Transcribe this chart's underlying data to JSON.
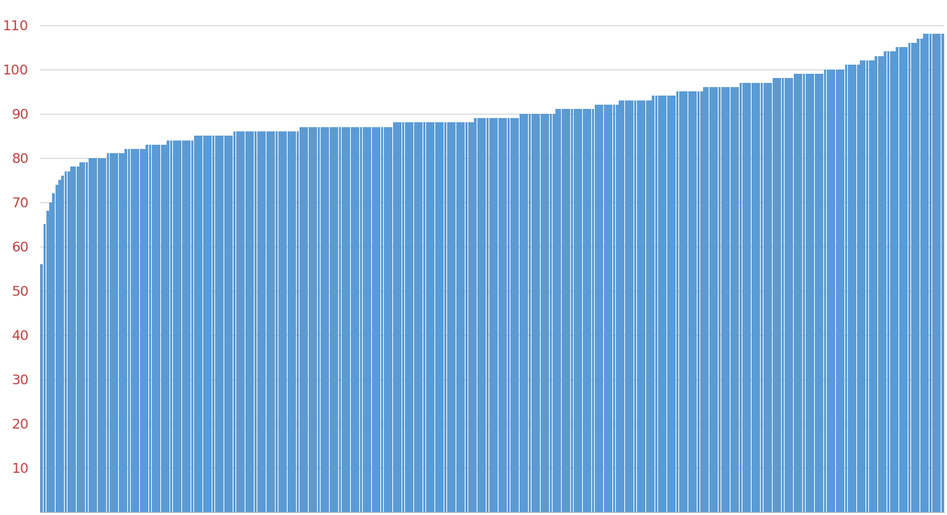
{
  "bar_color": "#5B9BD5",
  "background_color": "#ffffff",
  "grid_color": "#d0d0d0",
  "axis_label_color": "#BF4040",
  "ylim": [
    0,
    115
  ],
  "yticks": [
    0,
    10,
    20,
    30,
    40,
    50,
    60,
    70,
    80,
    90,
    100,
    110
  ],
  "n_bars": 300,
  "values": [
    56,
    65,
    68,
    70,
    72,
    74,
    75,
    76,
    77,
    77,
    78,
    78,
    78,
    79,
    79,
    79,
    80,
    80,
    80,
    80,
    80,
    80,
    81,
    81,
    81,
    81,
    81,
    81,
    82,
    82,
    82,
    82,
    82,
    82,
    82,
    83,
    83,
    83,
    83,
    83,
    83,
    83,
    84,
    84,
    84,
    84,
    84,
    84,
    84,
    84,
    84,
    85,
    85,
    85,
    85,
    85,
    85,
    85,
    85,
    85,
    85,
    85,
    85,
    85,
    86,
    86,
    86,
    86,
    86,
    86,
    86,
    86,
    86,
    86,
    86,
    86,
    86,
    86,
    86,
    86,
    86,
    86,
    86,
    86,
    86,
    86,
    87,
    87,
    87,
    87,
    87,
    87,
    87,
    87,
    87,
    87,
    87,
    87,
    87,
    87,
    87,
    87,
    87,
    87,
    87,
    87,
    87,
    87,
    87,
    87,
    87,
    87,
    87,
    87,
    87,
    87,
    87,
    88,
    88,
    88,
    88,
    88,
    88,
    88,
    88,
    88,
    88,
    88,
    88,
    88,
    88,
    88,
    88,
    88,
    88,
    88,
    88,
    88,
    88,
    88,
    88,
    88,
    88,
    88,
    89,
    89,
    89,
    89,
    89,
    89,
    89,
    89,
    89,
    89,
    89,
    89,
    89,
    89,
    89,
    90,
    90,
    90,
    90,
    90,
    90,
    90,
    90,
    90,
    90,
    90,
    90,
    91,
    91,
    91,
    91,
    91,
    91,
    91,
    91,
    91,
    91,
    91,
    91,
    91,
    92,
    92,
    92,
    92,
    92,
    92,
    92,
    92,
    93,
    93,
    93,
    93,
    93,
    93,
    93,
    93,
    93,
    93,
    93,
    94,
    94,
    94,
    94,
    94,
    94,
    94,
    94,
    95,
    95,
    95,
    95,
    95,
    95,
    95,
    95,
    95,
    96,
    96,
    96,
    96,
    96,
    96,
    96,
    96,
    96,
    96,
    96,
    96,
    97,
    97,
    97,
    97,
    97,
    97,
    97,
    97,
    97,
    97,
    97,
    98,
    98,
    98,
    98,
    98,
    98,
    98,
    99,
    99,
    99,
    99,
    99,
    99,
    99,
    99,
    99,
    99,
    100,
    100,
    100,
    100,
    100,
    100,
    100,
    101,
    101,
    101,
    101,
    101,
    102,
    102,
    102,
    102,
    102,
    103,
    103,
    103,
    104,
    104,
    104,
    104,
    105,
    105,
    105,
    105,
    106,
    106,
    106,
    107,
    107,
    108,
    108,
    108,
    108,
    108,
    108,
    108
  ]
}
